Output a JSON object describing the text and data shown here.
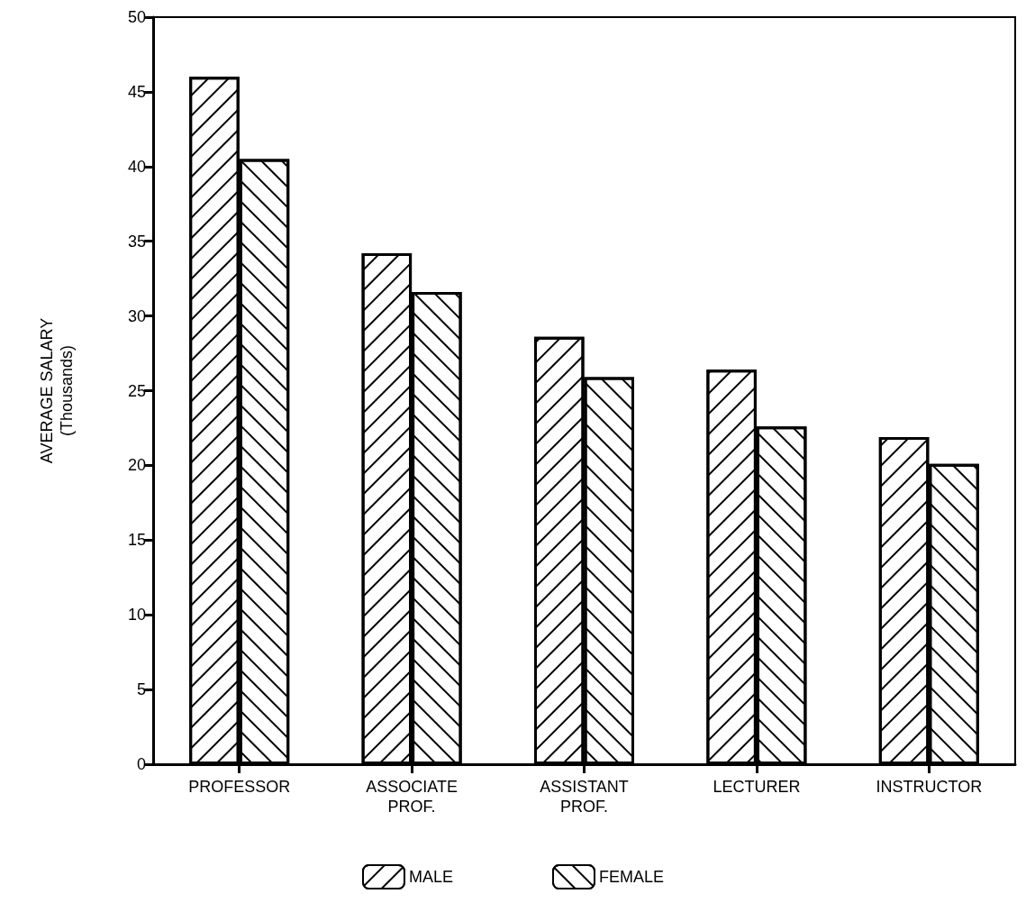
{
  "chart_data": {
    "type": "bar",
    "ylabel": "AVERAGE SALARY\n(Thousands)",
    "categories": [
      "PROFESSOR",
      "ASSOCIATE\nPROF.",
      "ASSISTANT\nPROF.",
      "LECTURER",
      "INSTRUCTOR"
    ],
    "series": [
      {
        "name": "MALE",
        "color": "#ffffff",
        "values": [
          46,
          34.2,
          28.6,
          26.4,
          21.9
        ]
      },
      {
        "name": "FEMALE",
        "color": "#ffffff",
        "values": [
          40.5,
          31.6,
          25.9,
          22.6,
          20.1
        ]
      }
    ],
    "ylim": [
      0,
      50
    ],
    "yticks": [
      0,
      5,
      10,
      15,
      20,
      25,
      30,
      35,
      40,
      45,
      50
    ],
    "grid": false,
    "legend": "bottom"
  }
}
